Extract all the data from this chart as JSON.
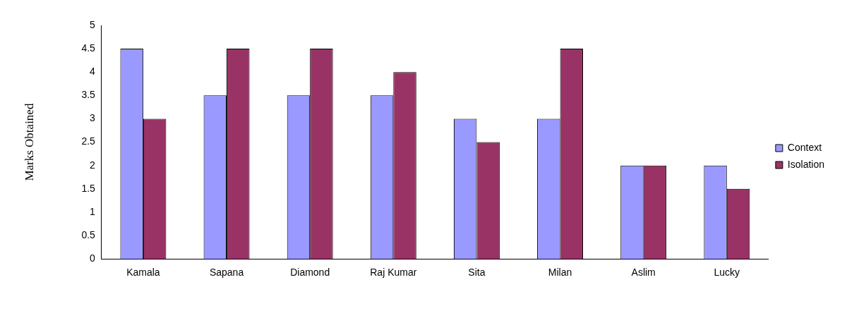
{
  "chart_data": {
    "type": "bar",
    "ylabel": "Marks Obtained",
    "categories": [
      "Kamala",
      "Sapana",
      "Diamond",
      "Raj Kumar",
      "Sita",
      "Milan",
      "Aslim",
      "Lucky"
    ],
    "series": [
      {
        "name": "Context",
        "color": "#9999ff",
        "values": [
          4.5,
          3.5,
          3.5,
          3.5,
          3,
          3,
          2,
          2
        ]
      },
      {
        "name": "Isolation",
        "color": "#993366",
        "values": [
          3,
          4.5,
          4.5,
          4,
          2.5,
          4.5,
          2,
          1.5
        ]
      }
    ],
    "ylim": [
      0,
      5
    ],
    "yticks": [
      0,
      0.5,
      1,
      1.5,
      2,
      2.5,
      3,
      3.5,
      4,
      4.5,
      5
    ],
    "grid": false,
    "legend": "right"
  }
}
